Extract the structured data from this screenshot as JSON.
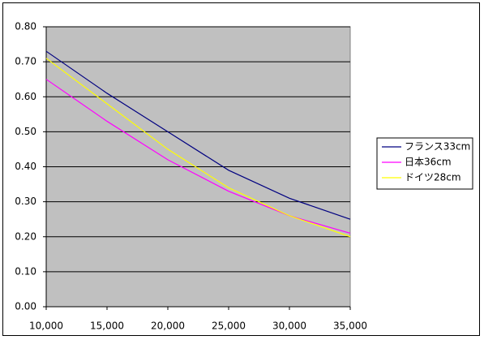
{
  "chart_data": {
    "type": "line",
    "x": [
      10000,
      15000,
      20000,
      25000,
      30000,
      35000
    ],
    "series": [
      {
        "name": "フランス33cm",
        "color": "#000080",
        "values": [
          0.73,
          0.61,
          0.5,
          0.39,
          0.31,
          0.25
        ]
      },
      {
        "name": "日本36cm",
        "color": "#ff00ff",
        "values": [
          0.65,
          0.53,
          0.42,
          0.33,
          0.26,
          0.21
        ]
      },
      {
        "name": "ドイツ28cm",
        "color": "#ffff00",
        "values": [
          0.71,
          0.58,
          0.45,
          0.34,
          0.26,
          0.2
        ]
      }
    ],
    "xlim": [
      10000,
      35000
    ],
    "xticks": [
      {
        "value": 10000,
        "label": "10,000"
      },
      {
        "value": 15000,
        "label": "15,000"
      },
      {
        "value": 20000,
        "label": "20,000"
      },
      {
        "value": 25000,
        "label": "25,000"
      },
      {
        "value": 30000,
        "label": "30,000"
      },
      {
        "value": 35000,
        "label": "35,000"
      }
    ],
    "ylim": [
      0,
      0.8
    ],
    "yticks": [
      {
        "value": 0,
        "label": "0.00"
      },
      {
        "value": 0.1,
        "label": "0.10"
      },
      {
        "value": 0.2,
        "label": "0.20"
      },
      {
        "value": 0.3,
        "label": "0.30"
      },
      {
        "value": 0.4,
        "label": "0.40"
      },
      {
        "value": 0.5,
        "label": "0.50"
      },
      {
        "value": 0.6,
        "label": "0.60"
      },
      {
        "value": 0.7,
        "label": "0.70"
      },
      {
        "value": 0.8,
        "label": "0.80"
      }
    ],
    "grid": true,
    "legend": "right"
  }
}
